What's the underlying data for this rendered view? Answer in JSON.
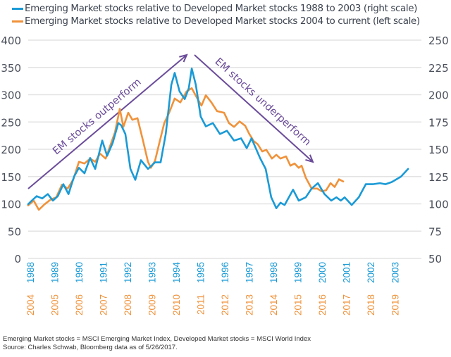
{
  "legend": [
    {
      "label": "Emerging Market stocks relative to Developed Market stocks 1988 to 2003 (right scale)",
      "color": "#1a9ad6"
    },
    {
      "label": "Emerging Market stocks relative to Developed Market stocks 2004 to current (left scale)",
      "color": "#f0923a"
    }
  ],
  "footnotes": [
    "Emerging Market stocks = MSCI Emerging Market Index, Developed Market stocks = MSCI World Index",
    "Source: Charles Schwab, Bloomberg data as of 5/26/2017."
  ],
  "chart_data": {
    "type": "line",
    "title": "",
    "left_axis": {
      "ticks": [
        0,
        50,
        100,
        150,
        200,
        250,
        300,
        350,
        400
      ],
      "range": [
        0,
        400
      ]
    },
    "right_axis": {
      "ticks": [
        50,
        75,
        100,
        125,
        150,
        175,
        200,
        225,
        250
      ],
      "range": [
        50,
        250
      ]
    },
    "x_ticks_top": [
      "1988",
      "1989",
      "1990",
      "1991",
      "1992",
      "1993",
      "1994",
      "1995",
      "1996",
      "1997",
      "1998",
      "1999",
      "2000",
      "2001",
      "2002",
      "2003"
    ],
    "x_ticks_bottom": [
      "2004",
      "2005",
      "2006",
      "2007",
      "2008",
      "2009",
      "2010",
      "2011",
      "2012",
      "2013",
      "2014",
      "2015",
      "2016",
      "2017",
      "2018",
      "2019"
    ],
    "grid": true,
    "series": [
      {
        "name": "Emerging Market stocks relative to Developed Market stocks 1988 to 2003 (right scale)",
        "axis": "right",
        "color": "#1a9ad6",
        "x_years_from_start": [
          -0.09,
          0.06,
          0.26,
          0.49,
          0.72,
          0.93,
          1.13,
          1.36,
          1.57,
          1.8,
          2.0,
          2.23,
          2.46,
          2.67,
          2.96,
          3.16,
          3.39,
          3.62,
          3.74,
          3.91,
          4.12,
          4.32,
          4.55,
          4.84,
          5.13,
          5.36,
          5.57,
          5.8,
          5.94,
          6.14,
          6.35,
          6.52,
          6.64,
          6.81,
          7.01,
          7.22,
          7.51,
          7.8,
          8.09,
          8.38,
          8.67,
          8.9,
          9.1,
          9.45,
          9.68,
          9.91,
          10.12,
          10.29,
          10.46,
          10.81,
          11.04,
          11.33,
          11.57,
          11.83,
          12.1,
          12.38,
          12.59,
          12.77,
          12.93,
          13.22,
          13.51,
          13.8,
          14.09,
          14.38,
          14.61,
          14.87,
          15.25,
          15.54
        ],
        "values": [
          99.7,
          103,
          107,
          105,
          109,
          103,
          107,
          118,
          109,
          125,
          133,
          128,
          142,
          132,
          158,
          144,
          156,
          174,
          172,
          164,
          132,
          122,
          140,
          132,
          138,
          138,
          164,
          209,
          220,
          203,
          196,
          206,
          224,
          209,
          180,
          171,
          174,
          164,
          167,
          158,
          160,
          151,
          160,
          142,
          132,
          106,
          96,
          101,
          99,
          113,
          103,
          106,
          114,
          119,
          109,
          103,
          106,
          103,
          106,
          99,
          106,
          118,
          118,
          119,
          118,
          120,
          125,
          132
        ]
      },
      {
        "name": "Emerging Market stocks relative to Developed Market stocks 2004 to current (left scale)",
        "axis": "left",
        "color": "#f0923a",
        "x_years_from_start": [
          -0.09,
          0.14,
          0.35,
          0.58,
          0.84,
          1.07,
          1.3,
          1.54,
          1.77,
          2.0,
          2.23,
          2.46,
          2.67,
          2.87,
          3.1,
          3.33,
          3.48,
          3.68,
          3.83,
          4.03,
          4.2,
          4.41,
          4.64,
          4.84,
          4.96,
          5.13,
          5.3,
          5.51,
          5.71,
          5.94,
          6.17,
          6.43,
          6.64,
          6.87,
          7.04,
          7.22,
          7.45,
          7.68,
          7.97,
          8.17,
          8.38,
          8.61,
          8.84,
          9.01,
          9.19,
          9.36,
          9.54,
          9.71,
          9.94,
          10.12,
          10.29,
          10.52,
          10.7,
          10.87,
          11.04,
          11.16,
          11.33,
          11.57,
          11.8,
          11.99,
          12.17,
          12.35,
          12.52,
          12.7,
          12.87
        ],
        "values": [
          97,
          106,
          89,
          99,
          108,
          112,
          135,
          128,
          145,
          177,
          174,
          183,
          177,
          192,
          183,
          212,
          231,
          274,
          241,
          267,
          254,
          257,
          215,
          177,
          166,
          179,
          210,
          248,
          267,
          293,
          286,
          306,
          312,
          293,
          280,
          299,
          286,
          270,
          267,
          248,
          241,
          251,
          243,
          228,
          215,
          209,
          196,
          199,
          183,
          190,
          183,
          187,
          170,
          174,
          166,
          170,
          148,
          128,
          128,
          123,
          125,
          138,
          131,
          145,
          141
        ]
      }
    ],
    "annotations": [
      {
        "text": "EM stocks outperform",
        "type": "arrow",
        "direction": "up-right",
        "color": "#6b4c9a"
      },
      {
        "text": "EM stocks underperform",
        "type": "arrow",
        "direction": "down-right",
        "color": "#6b4c9a"
      }
    ]
  }
}
